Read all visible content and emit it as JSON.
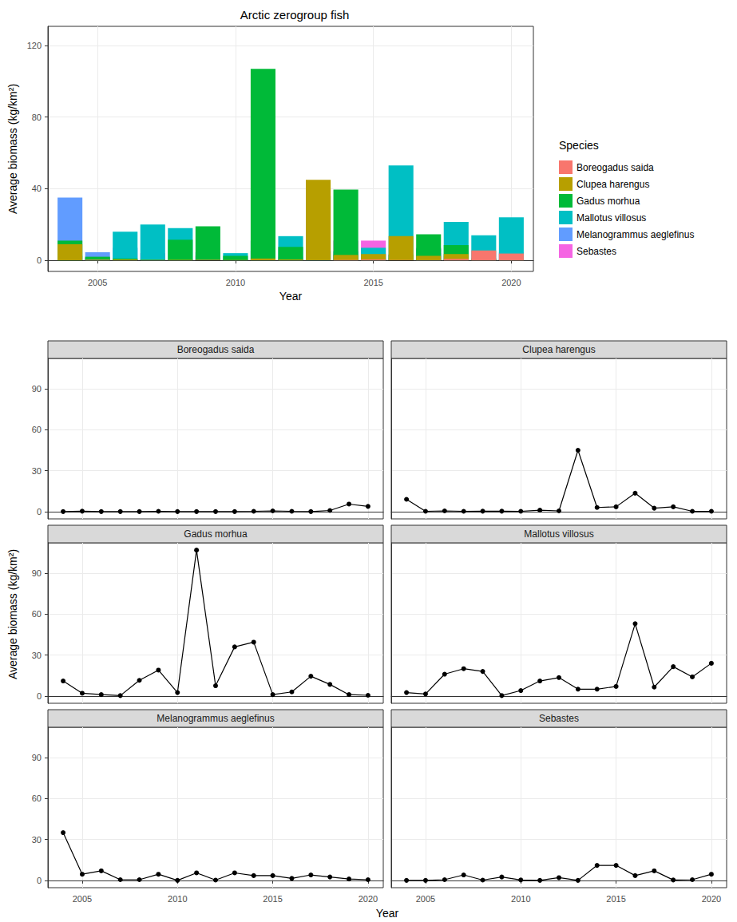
{
  "chart_data": [
    {
      "type": "bar",
      "title": "Arctic zerogroup fish",
      "xlabel": "Year",
      "ylabel": "Average biomass (kg/km²)",
      "legend_title": "Species",
      "legend": "right",
      "stacked": true,
      "grid": true,
      "x": [
        2004,
        2005,
        2006,
        2007,
        2008,
        2009,
        2010,
        2011,
        2012,
        2013,
        2014,
        2015,
        2016,
        2017,
        2018,
        2019,
        2020
      ],
      "xlim": [
        2003.2,
        2020.8
      ],
      "xticks": [
        2005,
        2010,
        2015,
        2020
      ],
      "ylim": [
        -6.2,
        130.7
      ],
      "yticks": [
        0,
        40,
        80,
        120
      ],
      "series": [
        {
          "name": "Boreogadus saida",
          "color": "#F8766D",
          "values": [
            0,
            0.3,
            0,
            0,
            0,
            0.2,
            0,
            0,
            0,
            0,
            0.2,
            0.5,
            0.2,
            0,
            0.8,
            5.5,
            3.8
          ]
        },
        {
          "name": "Clupea harengus",
          "color": "#B79F00",
          "values": [
            9,
            0.2,
            0.5,
            0.2,
            0.3,
            0.3,
            0.2,
            1,
            0.5,
            45,
            3,
            3.5,
            13.5,
            2.5,
            3.5,
            0.2,
            0.2
          ]
        },
        {
          "name": "Gadus morhua",
          "color": "#00BA38",
          "values": [
            11,
            2,
            1,
            0.3,
            11.5,
            19,
            2.5,
            107,
            7.5,
            36,
            39.5,
            1,
            3,
            14.5,
            8.5,
            1,
            0.5
          ]
        },
        {
          "name": "Mallotus villosus",
          "color": "#00BFC4",
          "values": [
            2.5,
            1.5,
            16,
            20,
            18,
            0.3,
            4,
            11,
            13.5,
            5,
            5,
            7,
            53,
            6.5,
            21.5,
            14,
            24
          ]
        },
        {
          "name": "Melanogrammus aeglefinus",
          "color": "#619CFF",
          "values": [
            35,
            4.5,
            7,
            0.5,
            0.5,
            4.5,
            0,
            5.5,
            0.2,
            5.5,
            3.5,
            3.5,
            1.5,
            4,
            2.5,
            1,
            0.5
          ]
        },
        {
          "name": "Sebastes",
          "color": "#F564E3",
          "values": [
            0,
            0,
            0.5,
            4,
            0.2,
            2.5,
            0.3,
            0,
            2,
            0,
            11,
            11,
            3.5,
            7,
            0.3,
            0.5,
            4.5
          ]
        }
      ]
    },
    {
      "type": "line",
      "xlabel": "Year",
      "ylabel": "Average biomass (kg/km²)",
      "grid": true,
      "marker": "circle",
      "color": "#000000",
      "x": [
        2004,
        2005,
        2006,
        2007,
        2008,
        2009,
        2010,
        2011,
        2012,
        2013,
        2014,
        2015,
        2016,
        2017,
        2018,
        2019,
        2020
      ],
      "xlim": [
        2003.2,
        2020.8
      ],
      "xticks": [
        2005,
        2010,
        2015,
        2020
      ],
      "ylim": [
        -5.35,
        112.35
      ],
      "yticks": [
        0,
        30,
        60,
        90
      ],
      "panels": [
        {
          "title": "Boreogadus saida",
          "values": [
            0,
            0.3,
            0,
            0,
            0,
            0.2,
            0,
            0,
            0,
            0,
            0.2,
            0.5,
            0.2,
            0,
            0.8,
            5.5,
            3.8
          ]
        },
        {
          "title": "Clupea harengus",
          "values": [
            9,
            0.2,
            0.5,
            0.2,
            0.3,
            0.3,
            0.2,
            1,
            0.5,
            45,
            3,
            3.5,
            13.5,
            2.5,
            3.5,
            0.2,
            0.2
          ]
        },
        {
          "title": "Gadus morhua",
          "values": [
            11,
            2,
            1,
            0.3,
            11.5,
            19,
            2.5,
            107,
            7.5,
            36,
            39.5,
            1,
            3,
            14.5,
            8.5,
            1,
            0.5
          ]
        },
        {
          "title": "Mallotus villosus",
          "values": [
            2.5,
            1.5,
            16,
            20,
            18,
            0.3,
            4,
            11,
            13.5,
            5,
            5,
            7,
            53,
            6.5,
            21.5,
            14,
            24
          ]
        },
        {
          "title": "Melanogrammus aeglefinus",
          "values": [
            35,
            4.5,
            7,
            0.5,
            0.5,
            4.5,
            0,
            5.5,
            0.2,
            5.5,
            3.5,
            3.5,
            1.5,
            4,
            2.5,
            1,
            0.5
          ]
        },
        {
          "title": "Sebastes",
          "values": [
            0,
            0,
            0.5,
            4,
            0.2,
            2.5,
            0.3,
            0,
            2,
            0,
            11,
            11,
            3.5,
            7,
            0.3,
            0.5,
            4.5
          ]
        }
      ]
    }
  ]
}
